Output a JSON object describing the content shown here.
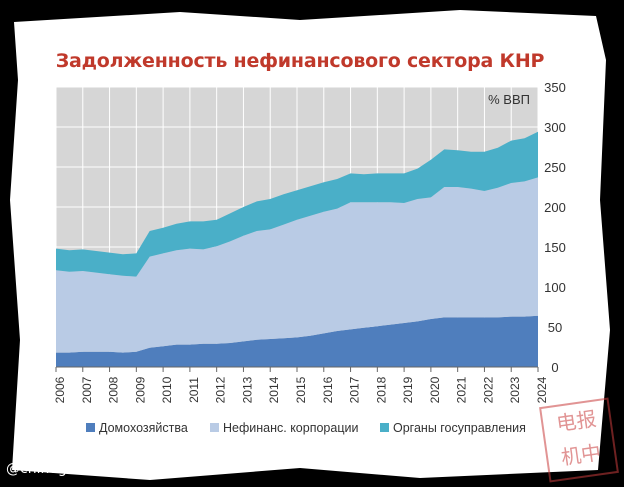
{
  "title": "Задолженность нефинансового сектора КНР",
  "watermark": "@chinogram",
  "stamp_text": "电报机中",
  "colors": {
    "households": "#4f7ebd",
    "corporations": "#b9cbe5",
    "government": "#4aafc8",
    "plot_bg": "#d6d6d6",
    "title": "#c0392b"
  },
  "chart_data": {
    "type": "area",
    "stacked": true,
    "unit_label": "% ВВП",
    "ylim": [
      0,
      350
    ],
    "y_ticks": [
      "0",
      "50",
      "100",
      "150",
      "200",
      "250",
      "300",
      "350"
    ],
    "y_axis_position": "right",
    "xlim": [
      2006,
      2024
    ],
    "x_ticks": [
      "2006",
      "2007",
      "2008",
      "2009",
      "2010",
      "2011",
      "2012",
      "2013",
      "2014",
      "2015",
      "2016",
      "2017",
      "2018",
      "2019",
      "2020",
      "2021",
      "2022",
      "2023",
      "2024"
    ],
    "grid": true,
    "legend_position": "bottom",
    "x": [
      2006.0,
      2006.5,
      2007.0,
      2007.5,
      2008.0,
      2008.5,
      2009.0,
      2009.5,
      2010.0,
      2010.5,
      2011.0,
      2011.5,
      2012.0,
      2012.5,
      2013.0,
      2013.5,
      2014.0,
      2014.5,
      2015.0,
      2015.5,
      2016.0,
      2016.5,
      2017.0,
      2017.5,
      2018.0,
      2018.5,
      2019.0,
      2019.5,
      2020.0,
      2020.5,
      2021.0,
      2021.5,
      2022.0,
      2022.5,
      2023.0,
      2023.5,
      2024.0
    ],
    "series": [
      {
        "name": "Домохозяйства",
        "values": [
          18,
          18,
          19,
          19,
          19,
          18,
          19,
          24,
          26,
          28,
          28,
          29,
          29,
          30,
          32,
          34,
          35,
          36,
          37,
          39,
          42,
          45,
          47,
          49,
          51,
          53,
          55,
          57,
          60,
          62,
          62,
          62,
          62,
          62,
          63,
          63,
          64
        ]
      },
      {
        "name": "Нефинанс. корпорации",
        "values": [
          103,
          101,
          101,
          99,
          97,
          96,
          94,
          114,
          116,
          118,
          120,
          118,
          122,
          127,
          132,
          136,
          137,
          142,
          147,
          150,
          152,
          153,
          159,
          157,
          155,
          153,
          150,
          153,
          152,
          163,
          163,
          161,
          158,
          162,
          167,
          169,
          173
        ]
      },
      {
        "name": "Органы госуправления",
        "values": [
          27,
          27,
          27,
          27,
          27,
          27,
          29,
          32,
          32,
          33,
          34,
          35,
          33,
          35,
          36,
          37,
          38,
          38,
          37,
          37,
          37,
          37,
          36,
          35,
          36,
          36,
          37,
          38,
          47,
          47,
          46,
          46,
          49,
          50,
          53,
          54,
          57
        ]
      }
    ]
  }
}
